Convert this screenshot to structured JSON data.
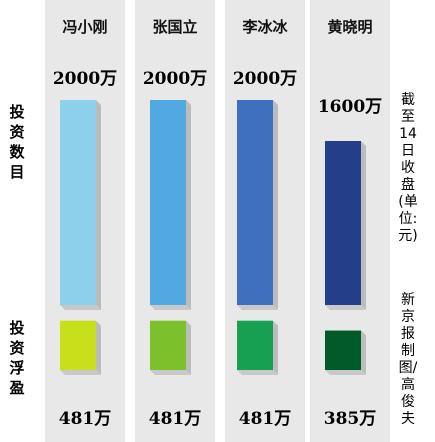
{
  "chart_data": {
    "type": "bar",
    "categories": [
      "冯小刚",
      "张国立",
      "李冰冰",
      "黄晓明"
    ],
    "series": [
      {
        "name": "投资数目",
        "values": [
          2000,
          2000,
          2000,
          1600
        ],
        "labels": [
          "2000万",
          "2000万",
          "2000万",
          "1600万"
        ]
      },
      {
        "name": "投资浮盈",
        "values": [
          481,
          481,
          481,
          385
        ],
        "labels": [
          "481万",
          "481万",
          "481万",
          "385万"
        ]
      }
    ],
    "colors": {
      "investment": [
        "#8cd0ec",
        "#52a8e0",
        "#3f6fbf",
        "#253e8a"
      ],
      "profit": [
        "#c8df1c",
        "#7cc02c",
        "#17a052",
        "#005a2a"
      ]
    },
    "ylim": [
      0,
      2000
    ]
  },
  "side_labels": {
    "investment": "投资数目",
    "profit": "投资浮盈"
  },
  "notes": {
    "date_unit": "截至14日收盘(单位:元)",
    "credit": "新京报制图/高俊夫"
  }
}
